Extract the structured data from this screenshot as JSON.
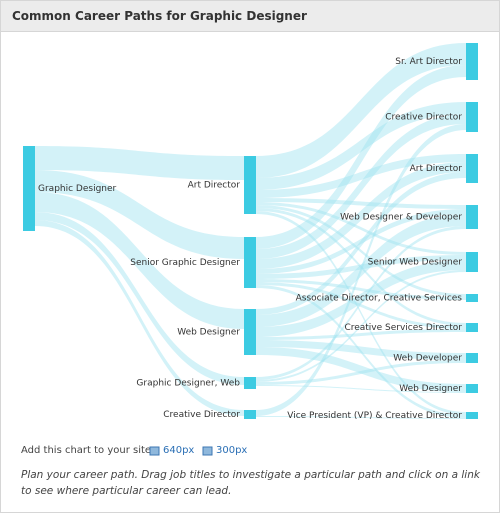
{
  "header": {
    "title": "Common Career Paths for Graphic Designer"
  },
  "nodes": {
    "left": [
      {
        "label": "Graphic Designer"
      }
    ],
    "middle": [
      {
        "label": "Art Director"
      },
      {
        "label": "Senior Graphic Designer"
      },
      {
        "label": "Web Designer"
      },
      {
        "label": "Graphic Designer, Web"
      },
      {
        "label": "Creative Director"
      }
    ],
    "right": [
      {
        "label": "Sr. Art Director"
      },
      {
        "label": "Creative Director"
      },
      {
        "label": "Art Director"
      },
      {
        "label": "Web Designer & Developer"
      },
      {
        "label": "Senior Web Designer"
      },
      {
        "label": "Associate Director, Creative Services"
      },
      {
        "label": "Creative Services Director"
      },
      {
        "label": "Web Developer"
      },
      {
        "label": "Web Designer"
      },
      {
        "label": "Vice President (VP) & Creative Director"
      }
    ]
  },
  "footer": {
    "add_text": "Add this chart to your site:",
    "links": [
      "640px",
      "300px"
    ],
    "note": "Plan your career path. Drag job titles to investigate a particular path and click on a link to see where particular career can lead."
  }
}
